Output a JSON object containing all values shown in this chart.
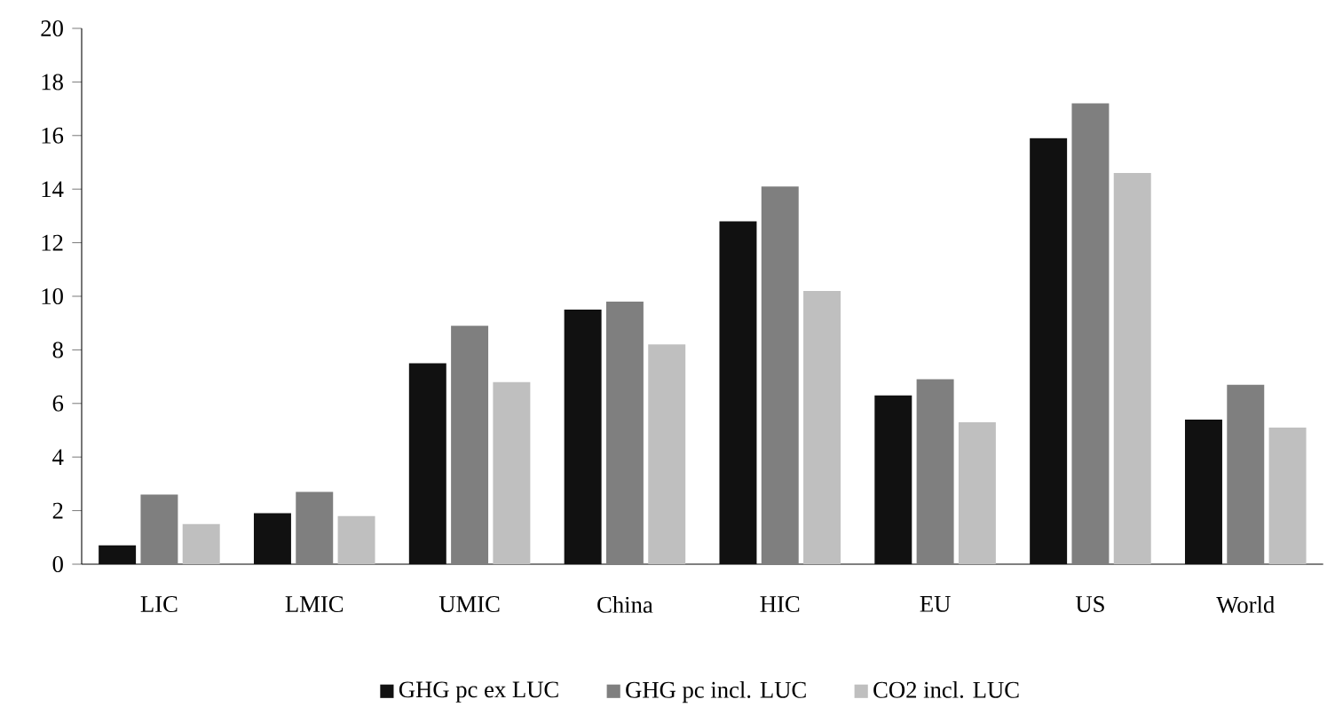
{
  "chart_data": {
    "type": "bar",
    "categories": [
      "LIC",
      "LMIC",
      "UMIC",
      "China",
      "HIC",
      "EU",
      "US",
      "World"
    ],
    "series": [
      {
        "name": "GHG pc ex LUC",
        "color": "#111111",
        "values": [
          0.7,
          1.9,
          7.5,
          9.5,
          12.8,
          6.3,
          15.9,
          5.4
        ]
      },
      {
        "name": "GHG pc incl. LUC",
        "color": "#7f7f7f",
        "values": [
          2.6,
          2.7,
          8.9,
          9.8,
          14.1,
          6.9,
          17.2,
          6.7
        ]
      },
      {
        "name": "CO2 incl. LUC",
        "color": "#bfbfbf",
        "values": [
          1.5,
          1.8,
          6.8,
          8.2,
          10.2,
          5.3,
          14.6,
          5.1
        ]
      }
    ],
    "ylim": [
      0,
      20
    ],
    "yticks": [
      0,
      2,
      4,
      6,
      8,
      10,
      12,
      14,
      16,
      18,
      20
    ],
    "grid": false,
    "legend": "bottom"
  }
}
